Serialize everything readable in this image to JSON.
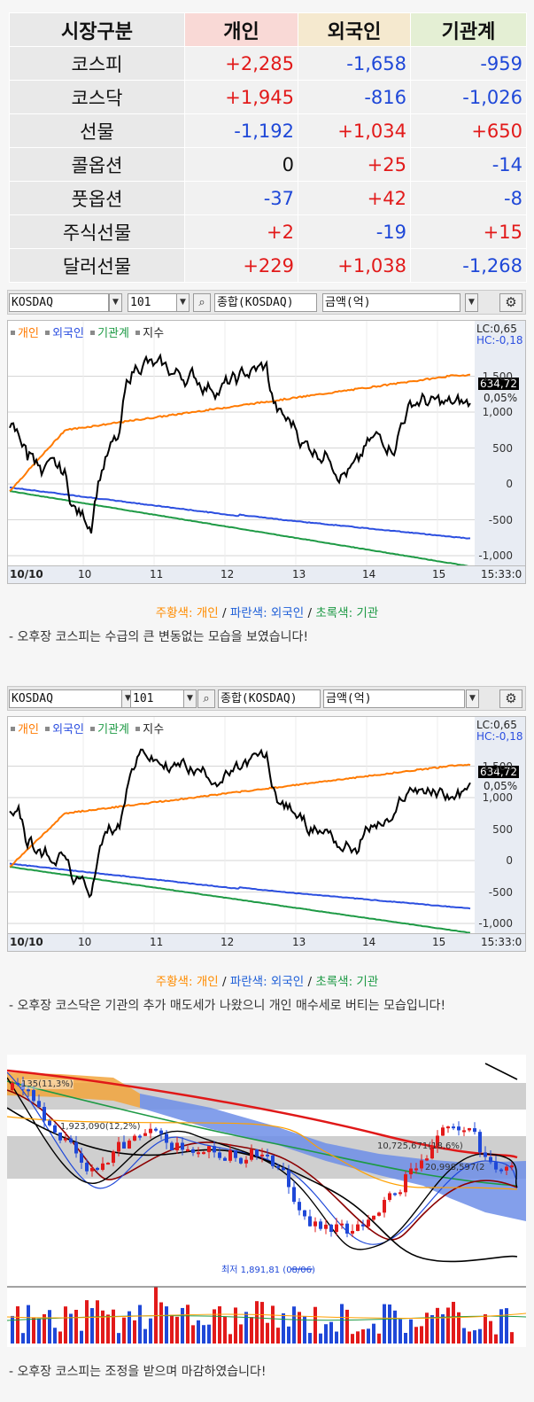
{
  "flow_table": {
    "headers": [
      "시장구분",
      "개인",
      "외국인",
      "기관계"
    ],
    "rows": [
      {
        "market": "코스피",
        "individual": "+2,285",
        "foreign": "-1,658",
        "institution": "-959"
      },
      {
        "market": "코스닥",
        "individual": "+1,945",
        "foreign": "-816",
        "institution": "-1,026"
      },
      {
        "market": "선물",
        "individual": "-1,192",
        "foreign": "+1,034",
        "institution": "+650"
      },
      {
        "market": "콜옵션",
        "individual": "0",
        "foreign": "+25",
        "institution": "-14"
      },
      {
        "market": "풋옵션",
        "individual": "-37",
        "foreign": "+42",
        "institution": "-8"
      },
      {
        "market": "주식선물",
        "individual": "+2",
        "foreign": "-19",
        "institution": "+15"
      },
      {
        "market": "달러선물",
        "individual": "+229",
        "foreign": "+1,038",
        "institution": "-1,268"
      }
    ]
  },
  "chart1": {
    "toolbar": {
      "market": "KOSDAQ",
      "code": "101",
      "index": "종합(KOSDAQ)",
      "unit": "금액(억)"
    },
    "legend": [
      "개인",
      "외국인",
      "기관계",
      "지수"
    ],
    "lc": "LC:0,65",
    "hc": "HC:-0,18",
    "price": "634,72",
    "pct": "0,05%",
    "y_ticks": [
      "1,500",
      "1,000",
      "500",
      "0",
      "-500",
      "-1,000"
    ],
    "x_ticks": [
      "10/10",
      "10",
      "11",
      "12",
      "13",
      "14",
      "15"
    ],
    "time": "15:33:0"
  },
  "caption1": {
    "orange": "주황색: 개인",
    "sep1": " / ",
    "blue": "파란색: 외국인",
    "sep2": " / ",
    "green": "초록색: 기관"
  },
  "note1": "- 오후장 코스피는 수급의 큰 변동없는 모습을 보였습니다!",
  "chart2": {
    "toolbar": {
      "market": "KOSDAQ",
      "code": "101",
      "index": "종합(KOSDAQ)",
      "unit": "금액(억)"
    },
    "legend": [
      "개인",
      "외국인",
      "기관계",
      "지수"
    ],
    "lc": "LC:0,65",
    "hc": "HC:-0,18",
    "price": "634,72",
    "pct": "0,05%",
    "y_ticks": [
      "1,500",
      "1,000",
      "500",
      "0",
      "-500",
      "-1,000"
    ],
    "x_ticks": [
      "10/10",
      "10",
      "11",
      "12",
      "13",
      "14",
      "15"
    ],
    "time": "15:33:0"
  },
  "caption2": {
    "orange": "주황색: 개인",
    "sep1": " / ",
    "blue": "파란색: 외국인",
    "sep2": " / ",
    "green": "초록색: 기관"
  },
  "note2": "- 오후장 코스닥은 기관의 추가 매도세가 나왔으니 개인 매수세로 버티는 모습입니다!",
  "candle_chart": {
    "labels": [
      "135(11,3%)",
      "1,923,090(12,2%)",
      "10,725,671(18,6%)",
      "20,998,597(2",
      "최저 1,891,81 (08/06)"
    ]
  },
  "note3": "- 오후장 코스피는 조정을 받으며 마감하였습니다!",
  "colors": {
    "individual": "#ff7a00",
    "foreign": "#2c4fe0",
    "institution": "#1e9a45",
    "index": "#000000",
    "up": "#e21a1a",
    "down": "#1f48d8"
  }
}
